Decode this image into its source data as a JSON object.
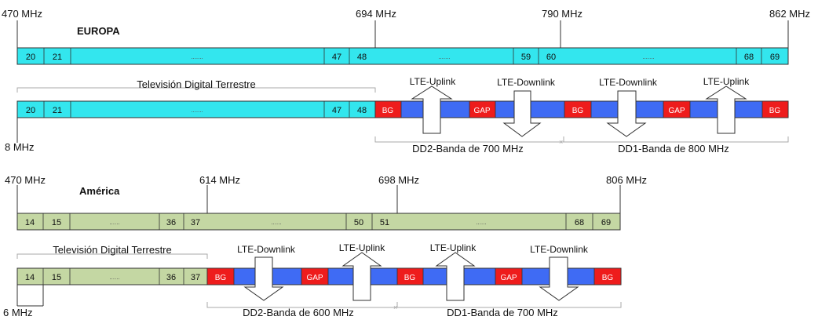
{
  "colors": {
    "europe_band": "#33e6ee",
    "america_band": "#c4d7a3",
    "lte_blue": "#3f6bf4",
    "guard_red": "#ee1c1c",
    "line": "#303030",
    "bracket": "#a9a9a9",
    "text": "#111111",
    "white": "#ffffff"
  },
  "europe": {
    "region_label": "EUROPA",
    "freq_labels": {
      "start": "470 MHz",
      "mid1": "694 MHz",
      "mid2": "790 MHz",
      "end": "862 MHz"
    },
    "top_bar_channels": {
      "c20": "20",
      "c21": "21",
      "dots1": ".......",
      "c47": "47",
      "c48": "48",
      "dots2": ".......",
      "c59": "59",
      "c60": "60",
      "dots3": ".......",
      "c68": "68",
      "c69": "69"
    },
    "bottom_bar_channels": {
      "c20": "20",
      "c21": "21",
      "dots1": ".......",
      "c47": "47",
      "c48": "48"
    },
    "tv_label": "Televisión Digital Terrestre",
    "channel_width_label": "8 MHz",
    "segments": {
      "bg1": "BG",
      "gap1": "GAP",
      "bg2": "BG",
      "gap2": "GAP",
      "bg3": "BG"
    },
    "lte_labels": {
      "uplink1": "LTE-Uplink",
      "downlink1": "LTE-Downlink",
      "downlink2": "LTE-Downlink",
      "uplink2": "LTE-Uplink"
    },
    "dividend_labels": {
      "dd2": "DD2-Banda de 700 MHz",
      "dd1": "DD1-Banda de 800 MHz"
    }
  },
  "america": {
    "region_label": "América",
    "freq_labels": {
      "start": "470 MHz",
      "mid1": "614 MHz",
      "mid2": "698 MHz",
      "end": "806 MHz"
    },
    "top_bar_channels": {
      "c14": "14",
      "c15": "15",
      "dots1": "......",
      "c36": "36",
      "c37": "37",
      "dots2": "......",
      "c50": "50",
      "c51": "51",
      "dots3": "......",
      "c68": "68",
      "c69": "69"
    },
    "bottom_bar_channels": {
      "c14": "14",
      "c15": "15",
      "dots1": "......",
      "c36": "36",
      "c37": "37"
    },
    "tv_label": "Televisión Digital Terrestre",
    "channel_width_label": "6 MHz",
    "segments": {
      "bg1": "BG",
      "gap1": "GAP",
      "bg2": "BG",
      "gap2": "GAP",
      "bg3": "BG"
    },
    "lte_labels": {
      "downlink1": "LTE-Downlink",
      "uplink1": "LTE-Uplink",
      "uplink2": "LTE-Uplink",
      "downlink2": "LTE-Downlink"
    },
    "dividend_labels": {
      "dd2": "DD2-Banda de 600 MHz",
      "dd1": "DD1-Banda de 700 MHz"
    }
  }
}
